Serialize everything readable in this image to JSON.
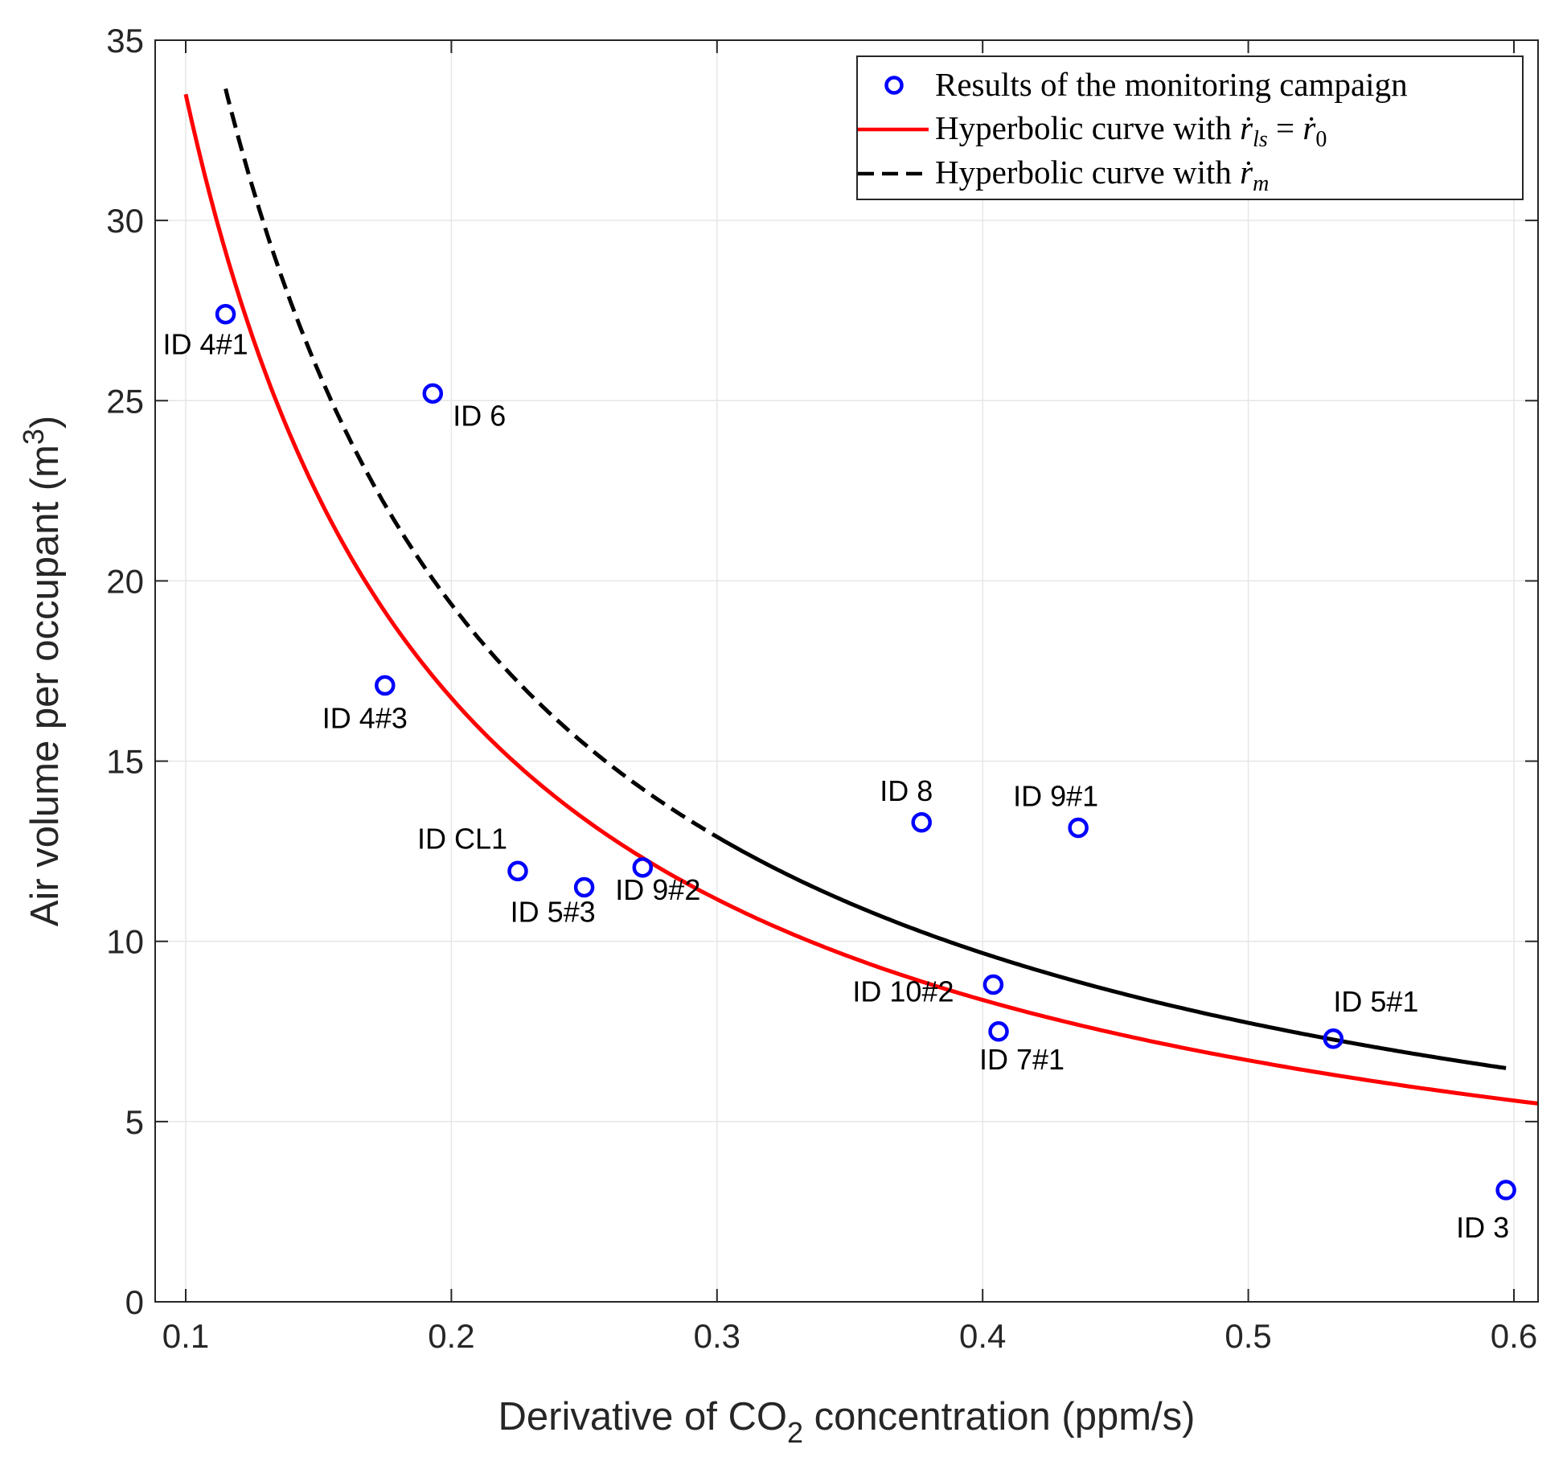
{
  "chart_data": {
    "type": "scatter",
    "xlabel_parts": [
      "Derivative of CO",
      "2",
      " concentration (ppm/s)"
    ],
    "ylabel_parts": [
      "Air volume per occupant (m",
      "3",
      ")"
    ],
    "xlim": [
      0.1,
      0.6
    ],
    "ylim": [
      0,
      35
    ],
    "x_ticks": [
      0.1,
      0.2,
      0.3,
      0.4,
      0.5,
      0.6
    ],
    "x_tick_labels": [
      "0.1",
      "0.2",
      "0.3",
      "0.4",
      "0.5",
      "0.6"
    ],
    "y_ticks": [
      0,
      5,
      10,
      15,
      20,
      25,
      30,
      35
    ],
    "y_tick_labels": [
      "0",
      "5",
      "10",
      "15",
      "20",
      "25",
      "30",
      "35"
    ],
    "grid": true,
    "legend_position": "top-right",
    "colors": {
      "points": "#0000ff",
      "red_curve": "#ff0000",
      "black_curve": "#000000",
      "axis": "#262626"
    },
    "points": [
      {
        "label": "ID 4#1",
        "x": 0.115,
        "y": 27.4
      },
      {
        "label": "ID 6",
        "x": 0.193,
        "y": 25.2
      },
      {
        "label": "ID 4#3",
        "x": 0.175,
        "y": 17.1
      },
      {
        "label": "ID CL1",
        "x": 0.225,
        "y": 11.95
      },
      {
        "label": "ID 5#3",
        "x": 0.25,
        "y": 11.5
      },
      {
        "label": "ID 9#2",
        "x": 0.272,
        "y": 12.05
      },
      {
        "label": "ID 8",
        "x": 0.377,
        "y": 13.3
      },
      {
        "label": "ID 9#1",
        "x": 0.436,
        "y": 13.15
      },
      {
        "label": "ID 10#2",
        "x": 0.404,
        "y": 8.8
      },
      {
        "label": "ID 7#1",
        "x": 0.406,
        "y": 7.5
      },
      {
        "label": "ID 5#1",
        "x": 0.532,
        "y": 7.3
      },
      {
        "label": "ID 3",
        "x": 0.597,
        "y": 3.1
      }
    ],
    "series": [
      {
        "name": "Results of the monitoring campaign",
        "type": "scatter"
      },
      {
        "name": "Hyperbolic curve with ṙls = ṙ0",
        "type": "line",
        "style": "solid",
        "k": 3.35,
        "x_range": [
          0.1,
          0.6
        ]
      },
      {
        "name": "Hyperbolic curve with ṙm",
        "type": "line",
        "style": "dashed-then-solid",
        "k": 3.87,
        "x_range": [
          0.115,
          0.597
        ],
        "dash_until_x": 0.3
      }
    ],
    "legend": [
      {
        "text": "Results of the monitoring campaign"
      },
      {
        "prefix": "Hyperbolic curve with ",
        "r1": "ṙ",
        "sub1": "ls",
        "eq": " = ",
        "r2": "ṙ",
        "sub2": "0"
      },
      {
        "prefix": "Hyperbolic curve with ",
        "r1": "ṙ",
        "sub1": "m"
      }
    ]
  }
}
